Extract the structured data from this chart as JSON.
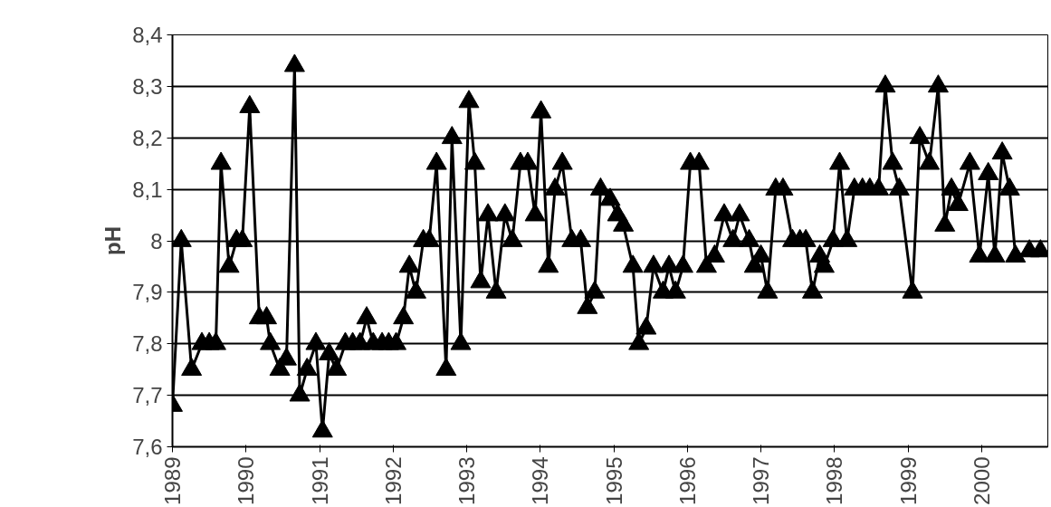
{
  "chart_data": {
    "type": "line",
    "ylabel": "pH",
    "marker": "triangle",
    "line_style": "solid",
    "grid": "y",
    "x": [
      1989.0,
      1989.12,
      1989.26,
      1989.4,
      1989.5,
      1989.59,
      1989.66,
      1989.77,
      1989.87,
      1989.95,
      1990.05,
      1990.18,
      1990.28,
      1990.33,
      1990.46,
      1990.55,
      1990.66,
      1990.73,
      1990.83,
      1990.95,
      1991.04,
      1991.13,
      1991.23,
      1991.35,
      1991.45,
      1991.55,
      1991.64,
      1991.73,
      1991.85,
      1991.94,
      1992.04,
      1992.14,
      1992.22,
      1992.31,
      1992.41,
      1992.49,
      1992.59,
      1992.72,
      1992.8,
      1992.92,
      1993.03,
      1993.11,
      1993.19,
      1993.29,
      1993.4,
      1993.52,
      1993.62,
      1993.73,
      1993.83,
      1993.93,
      1994.01,
      1994.11,
      1994.2,
      1994.3,
      1994.43,
      1994.55,
      1994.64,
      1994.74,
      1994.82,
      1994.95,
      1995.05,
      1995.13,
      1995.26,
      1995.34,
      1995.44,
      1995.54,
      1995.67,
      1995.75,
      1995.84,
      1995.94,
      1996.04,
      1996.16,
      1996.26,
      1996.37,
      1996.5,
      1996.62,
      1996.71,
      1996.84,
      1996.91,
      1997.0,
      1997.09,
      1997.2,
      1997.3,
      1997.43,
      1997.53,
      1997.61,
      1997.7,
      1997.8,
      1997.86,
      1997.98,
      1998.07,
      1998.17,
      1998.27,
      1998.38,
      1998.48,
      1998.6,
      1998.69,
      1998.79,
      1998.88,
      1999.06,
      1999.16,
      1999.29,
      1999.41,
      1999.5,
      1999.59,
      1999.68,
      1999.84,
      1999.97,
      2000.09,
      2000.18,
      2000.28,
      2000.38,
      2000.46,
      2000.65,
      2000.8
    ],
    "series": [
      {
        "color": "#000000",
        "values": [
          7.68,
          8.0,
          7.75,
          7.8,
          7.8,
          7.8,
          8.15,
          7.95,
          8.0,
          8.0,
          8.26,
          7.85,
          7.85,
          7.8,
          7.75,
          7.77,
          8.34,
          7.7,
          7.75,
          7.8,
          7.63,
          7.78,
          7.75,
          7.8,
          7.8,
          7.8,
          7.85,
          7.8,
          7.8,
          7.8,
          7.8,
          7.85,
          7.95,
          7.9,
          8.0,
          8.0,
          8.15,
          7.75,
          8.2,
          7.8,
          8.27,
          8.15,
          7.92,
          8.05,
          7.9,
          8.05,
          8.0,
          8.15,
          8.15,
          8.05,
          8.25,
          7.95,
          8.1,
          8.15,
          8.0,
          8.0,
          7.87,
          7.9,
          8.1,
          8.08,
          8.05,
          8.03,
          7.95,
          7.8,
          7.83,
          7.95,
          7.9,
          7.95,
          7.9,
          7.95,
          8.15,
          8.15,
          7.95,
          7.97,
          8.05,
          8.0,
          8.05,
          8.0,
          7.95,
          7.97,
          7.9,
          8.1,
          8.1,
          8.0,
          8.0,
          8.0,
          7.9,
          7.97,
          7.95,
          8.0,
          8.15,
          8.0,
          8.1,
          8.1,
          8.1,
          8.1,
          8.3,
          8.15,
          8.1,
          7.9,
          8.2,
          8.15,
          8.3,
          8.03,
          8.1,
          8.07,
          8.15,
          7.97,
          8.13,
          7.97,
          8.17,
          8.1,
          7.97,
          7.98,
          7.98
        ]
      }
    ],
    "xlim": [
      1989.0,
      2000.9
    ],
    "xticks": [
      1989,
      1990,
      1991,
      1992,
      1993,
      1994,
      1995,
      1996,
      1997,
      1998,
      1999,
      2000
    ],
    "ylim": [
      7.6,
      8.4
    ],
    "yticks": [
      {
        "value": 7.6,
        "label": "7,6"
      },
      {
        "value": 7.7,
        "label": "7,7"
      },
      {
        "value": 7.8,
        "label": "7,8"
      },
      {
        "value": 7.9,
        "label": "7,9"
      },
      8,
      {
        "value": 8.1,
        "label": "8,1"
      },
      {
        "value": 8.2,
        "label": "8,2"
      },
      {
        "value": 8.3,
        "label": "8,3"
      },
      {
        "value": 8.4,
        "label": "8,4"
      }
    ]
  }
}
